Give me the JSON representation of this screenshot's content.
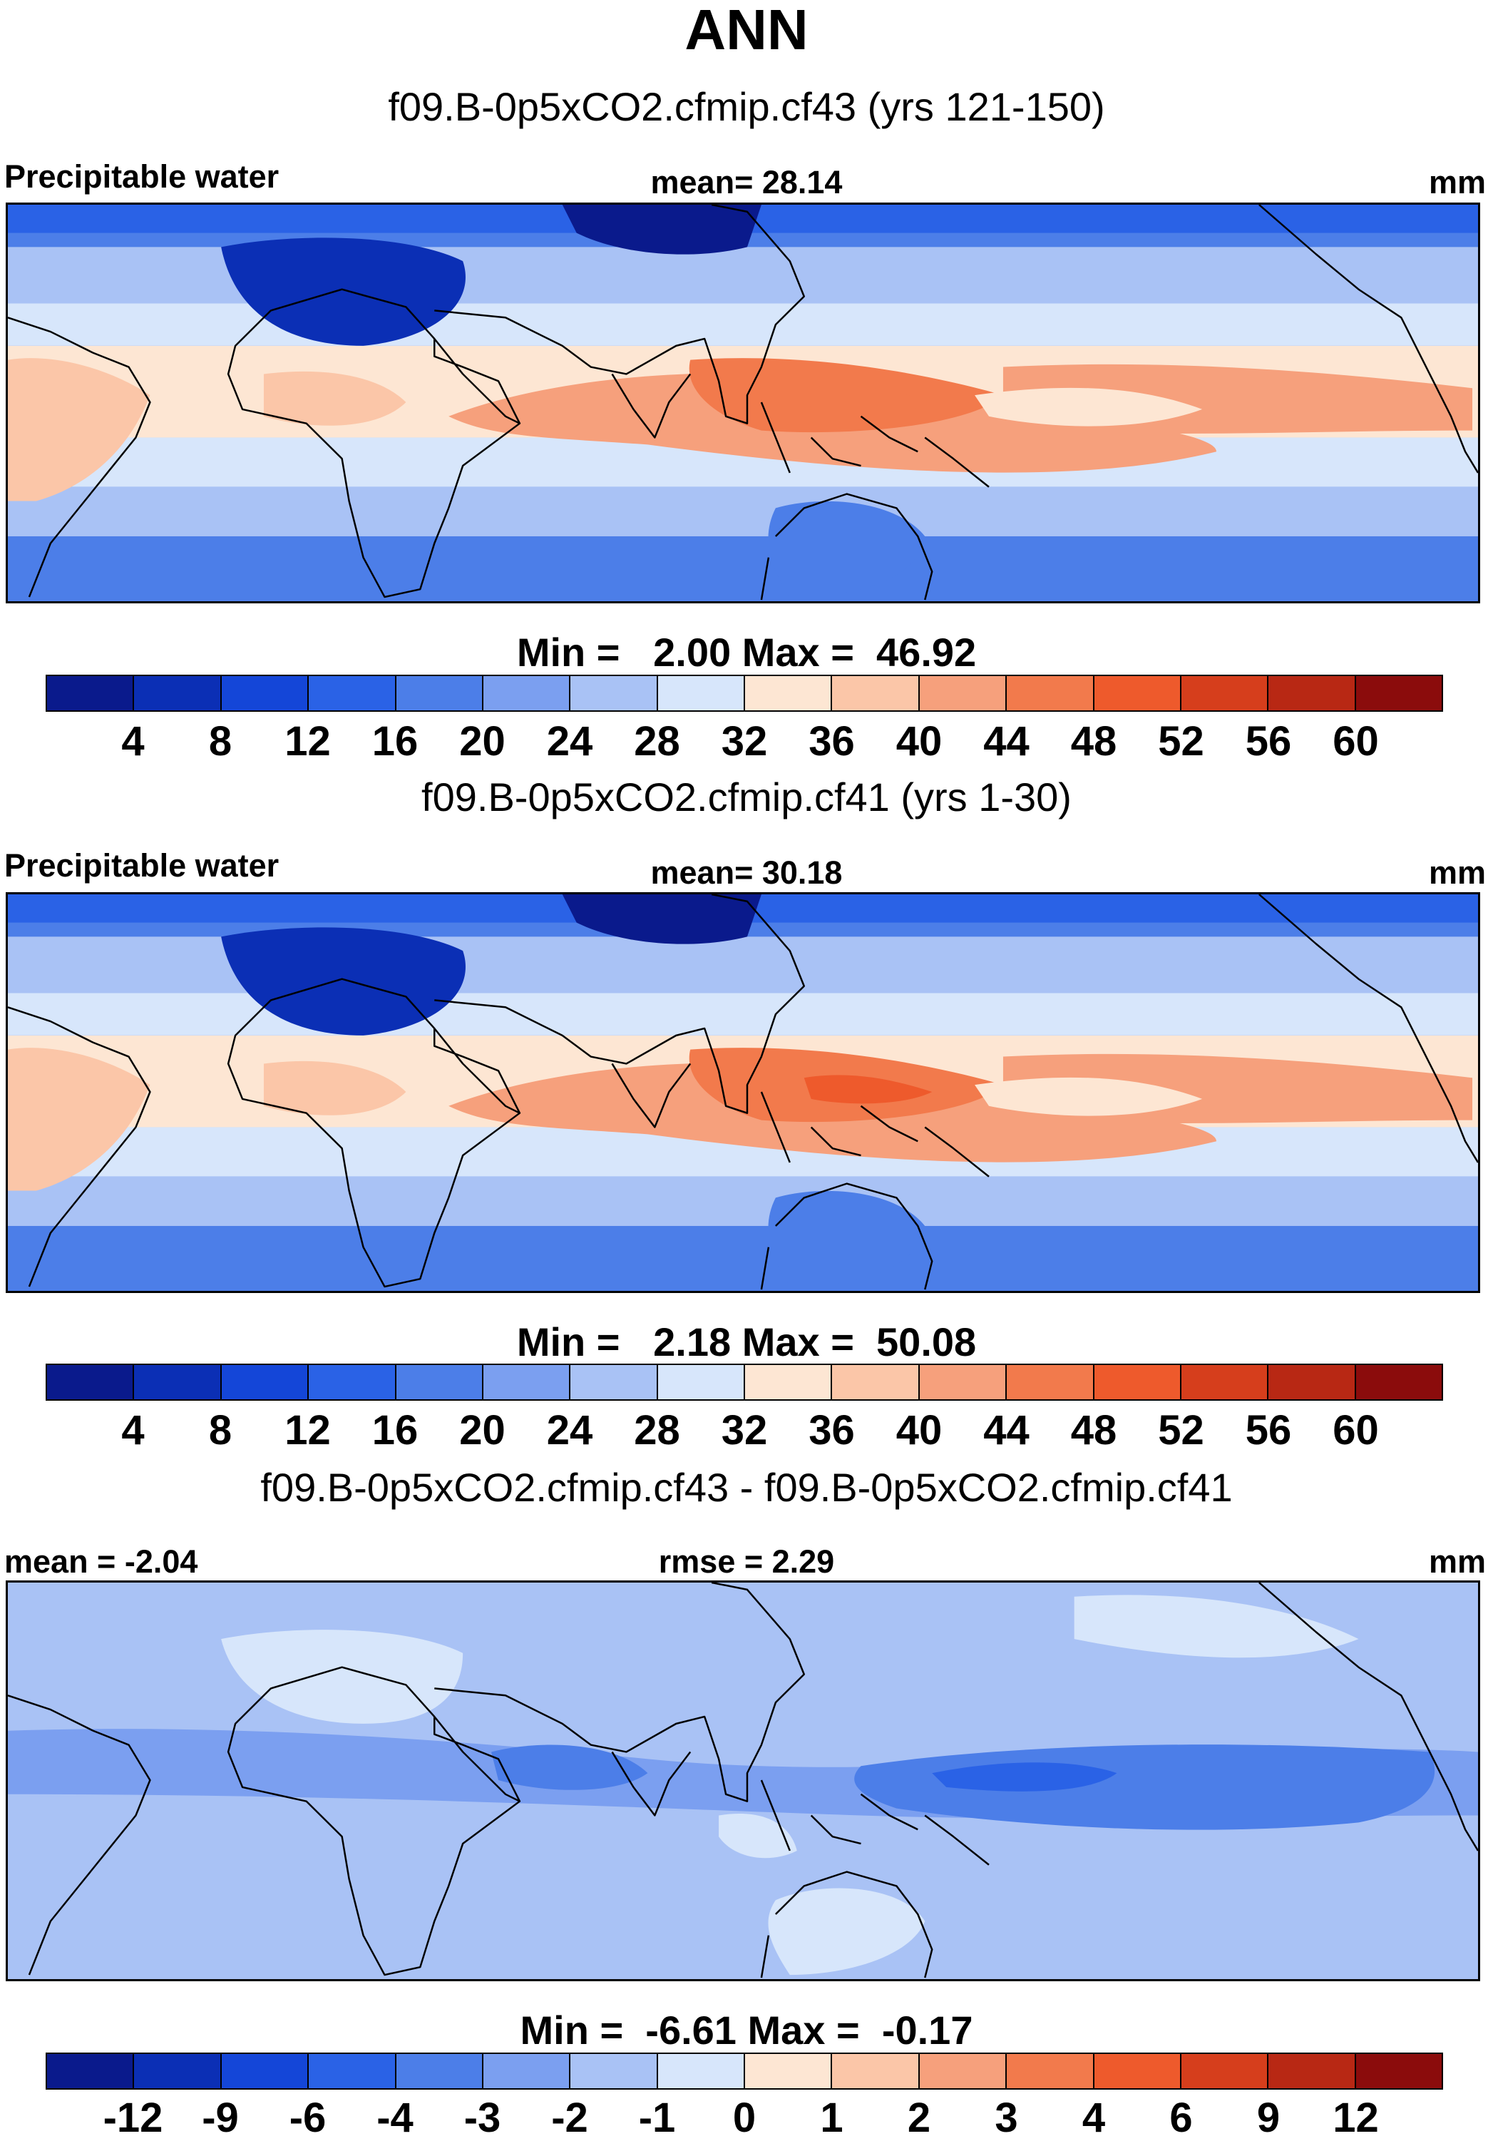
{
  "figure": {
    "title": "ANN"
  },
  "palettes": {
    "blue_red_16": [
      "#0a1a8c",
      "#0b2fb5",
      "#1446d8",
      "#2a62e6",
      "#4c7ee8",
      "#7b9ff0",
      "#a9c2f5",
      "#d7e6fb",
      "#fde6d3",
      "#fbc6a8",
      "#f6a07c",
      "#f27a4c",
      "#ee5a2c",
      "#d63e1c",
      "#b82814",
      "#8b0c0c"
    ]
  },
  "panels": [
    {
      "case_title": "f09.B-0p5xCO2.cfmip.cf43 (yrs 121-150)",
      "header_left": "Precipitable water",
      "header_center": "mean=  28.14",
      "header_right": "mm",
      "minmax": "Min =   2.00 Max =  46.92",
      "map": {
        "type": "absolute",
        "dry_level": 3,
        "wet_level": 11,
        "pacific_warm_pool": 11,
        "sahara_min": 1
      },
      "colorbar_labels": [
        "4",
        "8",
        "12",
        "16",
        "20",
        "24",
        "28",
        "32",
        "36",
        "40",
        "44",
        "48",
        "52",
        "56",
        "60"
      ]
    },
    {
      "case_title": "f09.B-0p5xCO2.cfmip.cf41 (yrs 1-30)",
      "header_left": "Precipitable water",
      "header_center": "mean=  30.18",
      "header_right": "mm",
      "minmax": "Min =   2.18 Max =  50.08",
      "map": {
        "type": "absolute",
        "dry_level": 3,
        "wet_level": 11,
        "pacific_warm_pool": 12,
        "sahara_min": 1
      },
      "colorbar_labels": [
        "4",
        "8",
        "12",
        "16",
        "20",
        "24",
        "28",
        "32",
        "36",
        "40",
        "44",
        "48",
        "52",
        "56",
        "60"
      ]
    },
    {
      "case_title": "f09.B-0p5xCO2.cfmip.cf43 - f09.B-0p5xCO2.cfmip.cf41",
      "header_left": "mean =  -2.04",
      "header_center": "rmse =   2.29",
      "header_right": "mm",
      "minmax": "Min =  -6.61 Max =  -0.17",
      "map": {
        "type": "difference",
        "background_level": 6,
        "tropical_band_level": 4,
        "pacific_core_level": 3
      },
      "colorbar_labels": [
        "-12",
        "-9",
        "-6",
        "-4",
        "-3",
        "-2",
        "-1",
        "0",
        "1",
        "2",
        "3",
        "4",
        "6",
        "9",
        "12"
      ]
    }
  ]
}
